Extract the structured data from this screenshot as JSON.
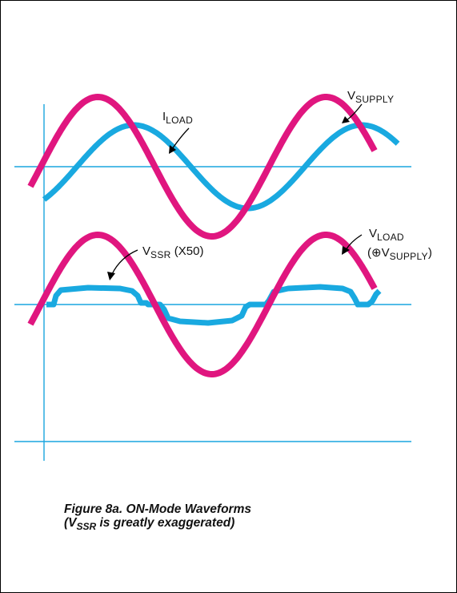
{
  "labels": {
    "i_load": {
      "main": "I",
      "sub": "LOAD"
    },
    "v_supply": {
      "main": "V",
      "sub": "SUPPLY"
    },
    "v_ssr": {
      "main": "V",
      "sub": "SSR",
      "suffix": " (X50)"
    },
    "v_load": {
      "main": "V",
      "sub": "LOAD",
      "line2_prefix": "(⊕V",
      "line2_sub": "SUPPLY",
      "line2_suffix": ")"
    }
  },
  "caption": {
    "line1": "Figure 8a. ON-Mode Waveforms",
    "line2_prefix": "(V",
    "line2_sub": "SSR",
    "line2_suffix": " is greatly exaggerated)"
  },
  "colors": {
    "supply_wave": "#e0167f",
    "load_current_wave": "#19a9e0",
    "axes": "#1aa6df",
    "border": "#000000"
  }
}
